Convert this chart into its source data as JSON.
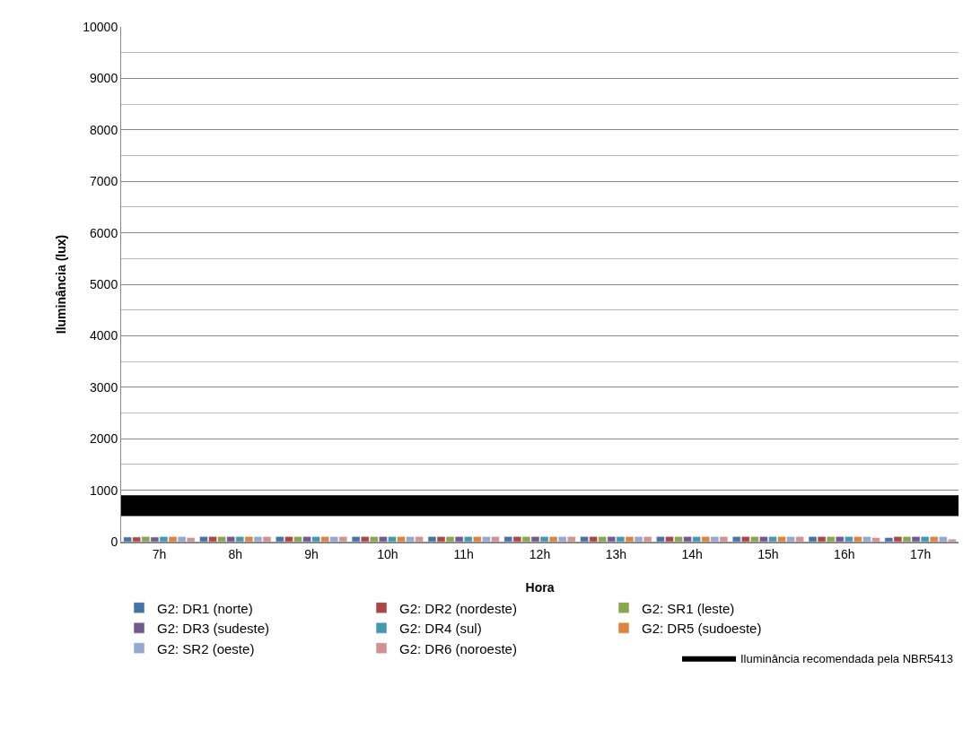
{
  "chart_data": {
    "type": "bar",
    "xlabel": "Hora",
    "ylabel": "Iluminância (lux)",
    "categories": [
      "7h",
      "8h",
      "9h",
      "10h",
      "11h",
      "12h",
      "13h",
      "14h",
      "15h",
      "16h",
      "17h"
    ],
    "series": [
      {
        "name": "G2: DR1 (norte)",
        "color": "#4572a7",
        "values": [
          90,
          100,
          100,
          100,
          100,
          100,
          100,
          100,
          100,
          100,
          80
        ]
      },
      {
        "name": "G2: DR2 (nordeste)",
        "color": "#aa4643",
        "values": [
          90,
          100,
          100,
          100,
          100,
          100,
          100,
          100,
          100,
          100,
          100
        ]
      },
      {
        "name": "G2: SR1 (leste)",
        "color": "#89a54e",
        "values": [
          100,
          100,
          100,
          100,
          100,
          100,
          100,
          100,
          100,
          100,
          100
        ]
      },
      {
        "name": "G2: DR3 (sudeste)",
        "color": "#71588f",
        "values": [
          90,
          100,
          100,
          100,
          100,
          100,
          100,
          100,
          100,
          100,
          100
        ]
      },
      {
        "name": "G2: DR4 (sul)",
        "color": "#4198af",
        "values": [
          100,
          100,
          100,
          100,
          100,
          100,
          100,
          100,
          100,
          100,
          100
        ]
      },
      {
        "name": "G2: DR5 (sudoeste)",
        "color": "#db843d",
        "values": [
          100,
          100,
          100,
          100,
          100,
          100,
          100,
          100,
          100,
          100,
          100
        ]
      },
      {
        "name": "G2: SR2 (oeste)",
        "color": "#93a9cf",
        "values": [
          100,
          100,
          100,
          100,
          100,
          100,
          100,
          100,
          100,
          100,
          100
        ]
      },
      {
        "name": "G2: DR6 (noroeste)",
        "color": "#d19392",
        "values": [
          80,
          100,
          100,
          100,
          100,
          100,
          100,
          100,
          100,
          80,
          50
        ]
      }
    ],
    "ylim": [
      0,
      10000
    ],
    "yticks": [
      0,
      1000,
      2000,
      3000,
      4000,
      5000,
      6000,
      7000,
      8000,
      9000,
      10000
    ],
    "bands": [
      {
        "axis": "y",
        "from": 500,
        "to": 900,
        "label": "Iluminância recomendada pela NBR5413",
        "color": "#000000"
      }
    ],
    "grid": "y",
    "legend": "bottom"
  }
}
